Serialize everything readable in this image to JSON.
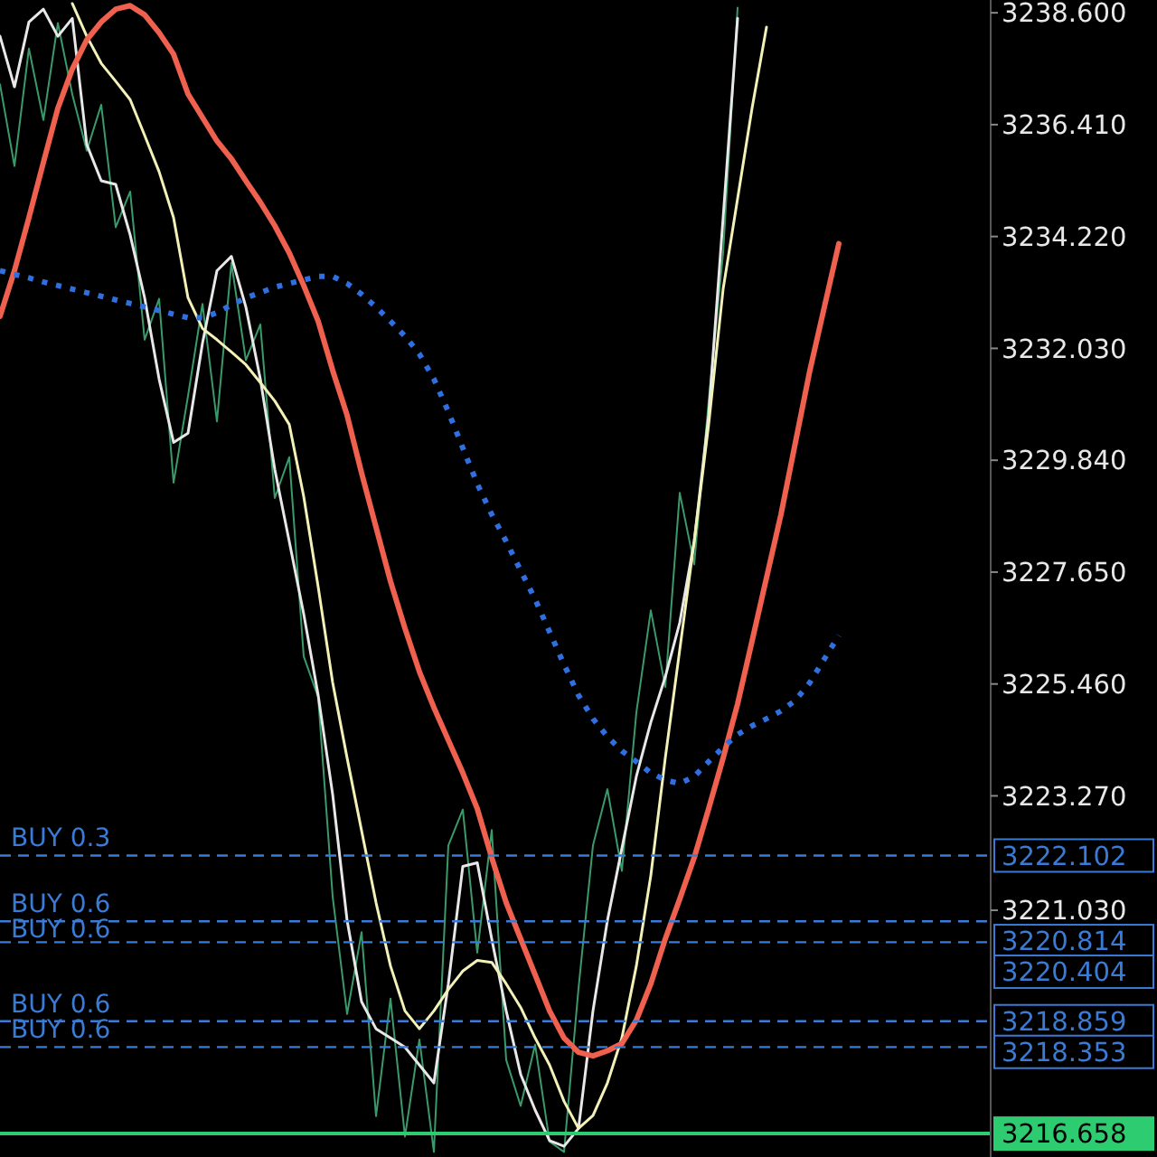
{
  "chart_data": {
    "type": "line",
    "annotations": [
      "3222.102",
      "3220.814",
      "3220.404",
      "3218.859",
      "3218.353",
      "3216.658"
    ],
    "categories": [
      null,
      null,
      null,
      null,
      null,
      null,
      null,
      null,
      null,
      null,
      null,
      null,
      null,
      null,
      null,
      null,
      null,
      null,
      null,
      null,
      null,
      null,
      null,
      null,
      null,
      null,
      null,
      null,
      null,
      null,
      null,
      null,
      null,
      null,
      null,
      null,
      null,
      null,
      null,
      null,
      null,
      null,
      null,
      null,
      null,
      null,
      null,
      null,
      null,
      null,
      null,
      null,
      null,
      null,
      null,
      null,
      null,
      null,
      null,
      null,
      null,
      null,
      null,
      null,
      null,
      null,
      null,
      null,
      null
    ],
    "ylim": [
      3216.2,
      3238.85
    ],
    "yticks": [
      {
        "value": 3238.6,
        "label": "3238.600"
      },
      {
        "value": 3236.41,
        "label": "3236.410"
      },
      {
        "value": 3234.22,
        "label": "3234.220"
      },
      {
        "value": 3232.03,
        "label": "3232.030"
      },
      {
        "value": 3229.84,
        "label": "3229.840"
      },
      {
        "value": 3227.65,
        "label": "3227.650"
      },
      {
        "value": 3225.46,
        "label": "3225.460"
      },
      {
        "value": 3223.27,
        "label": "3223.270"
      },
      {
        "value": 3221.03,
        "label": "3221.030"
      }
    ],
    "series": [
      {
        "color": "#3a9a6a",
        "values": [
          3237.2,
          3235.6,
          3237.9,
          3236.5,
          3238.4,
          3237.0,
          3235.9,
          3236.8,
          3234.4,
          3235.1,
          3232.2,
          3233.0,
          3229.4,
          3231.1,
          3232.9,
          3230.6,
          3233.7,
          3231.8,
          3232.5,
          3229.1,
          3229.9,
          3226.0,
          3225.2,
          3221.3,
          3219.0,
          3220.6,
          3217.0,
          3219.3,
          3216.6,
          3218.5,
          3216.3,
          3222.3,
          3223.0,
          3220.2,
          3222.6,
          3218.1,
          3217.2,
          3218.4,
          3216.5,
          3216.3,
          3219.5,
          3222.3,
          3223.4,
          3221.8,
          3224.9,
          3226.9,
          3225.4,
          3229.2,
          3227.8,
          3231.0,
          3233.9,
          3238.7,
          null,
          null,
          null,
          null,
          null,
          null,
          null,
          null,
          null,
          null,
          null,
          null,
          null,
          null,
          null,
          null,
          null
        ]
      },
      {
        "color": "#e8e8e8",
        "values": [
          3238.14,
          3237.15,
          3238.42,
          3238.67,
          3238.14,
          3238.49,
          3236.02,
          3235.31,
          3235.24,
          3234.25,
          3233.02,
          3231.43,
          3230.19,
          3230.37,
          3232.13,
          3233.55,
          3233.83,
          3232.84,
          3231.43,
          3229.66,
          3228.25,
          3226.83,
          3225.24,
          3223.3,
          3220.83,
          3219.24,
          3218.71,
          3218.53,
          3218.35,
          3218.0,
          3217.65,
          3219.59,
          3221.89,
          3221.96,
          3220.47,
          3219.06,
          3217.82,
          3217.12,
          3216.52,
          3216.41,
          3216.76,
          3219.06,
          3220.83,
          3222.24,
          3223.65,
          3224.71,
          3225.6,
          3226.66,
          3228.25,
          3230.72,
          3234.59,
          3238.49,
          null,
          null,
          null,
          null,
          null,
          null,
          null,
          null,
          null,
          null,
          null,
          null,
          null,
          null,
          null,
          null,
          null
        ]
      },
      {
        "color": "#f3f1b8",
        "values": [
          null,
          null,
          null,
          null,
          null,
          3238.78,
          3238.14,
          3237.61,
          3237.26,
          3236.9,
          3236.2,
          3235.49,
          3234.59,
          3233.02,
          3232.42,
          3232.2,
          3231.96,
          3231.71,
          3231.36,
          3231.0,
          3230.54,
          3229.13,
          3227.36,
          3225.49,
          3224.01,
          3222.59,
          3221.18,
          3219.94,
          3219.06,
          3218.71,
          3219.06,
          3219.48,
          3219.84,
          3220.05,
          3220.01,
          3219.59,
          3219.13,
          3218.53,
          3218.0,
          3217.29,
          3216.76,
          3217.01,
          3217.65,
          3218.53,
          3219.94,
          3221.71,
          3224.01,
          3226.13,
          3228.25,
          3230.54,
          3233.19,
          3234.96,
          3236.73,
          3238.32,
          null,
          null,
          null,
          null,
          null,
          null,
          null,
          null,
          null,
          null,
          null,
          null,
          null,
          null,
          null
        ]
      },
      {
        "color": "#f0604e",
        "values": [
          3232.66,
          3233.55,
          3234.59,
          3235.67,
          3236.73,
          3237.5,
          3238.07,
          3238.42,
          3238.67,
          3238.74,
          3238.56,
          3238.21,
          3237.79,
          3237.01,
          3236.55,
          3236.09,
          3235.74,
          3235.31,
          3234.89,
          3234.43,
          3233.9,
          3233.26,
          3232.56,
          3231.6,
          3230.72,
          3229.59,
          3228.53,
          3227.47,
          3226.55,
          3225.7,
          3225.0,
          3224.36,
          3223.72,
          3223.02,
          3222.06,
          3221.18,
          3220.47,
          3219.77,
          3219.06,
          3218.53,
          3218.25,
          3218.18,
          3218.28,
          3218.42,
          3218.88,
          3219.59,
          3220.47,
          3221.25,
          3222.06,
          3223.02,
          3224.01,
          3225.07,
          3226.3,
          3227.54,
          3228.78,
          3230.19,
          3231.6,
          3232.84,
          3234.08,
          null,
          null,
          null,
          null,
          null,
          null,
          null,
          null,
          null,
          null
        ]
      },
      {
        "color": "#2f6fe0",
        "line_style": "dotted",
        "values": [
          3233.55,
          3233.48,
          3233.41,
          3233.33,
          3233.26,
          3233.19,
          3233.12,
          3233.05,
          3232.98,
          3232.91,
          3232.84,
          3232.77,
          3232.7,
          3232.63,
          3232.63,
          3232.73,
          3232.88,
          3233.02,
          3233.12,
          3233.23,
          3233.3,
          3233.37,
          3233.44,
          3233.44,
          3233.3,
          3233.09,
          3232.84,
          3232.56,
          3232.27,
          3231.92,
          3231.43,
          3230.79,
          3230.08,
          3229.38,
          3228.78,
          3228.25,
          3227.68,
          3227.12,
          3226.48,
          3225.84,
          3225.24,
          3224.78,
          3224.43,
          3224.15,
          3223.94,
          3223.72,
          3223.58,
          3223.51,
          3223.65,
          3223.94,
          3224.22,
          3224.47,
          3224.64,
          3224.78,
          3224.93,
          3225.14,
          3225.49,
          3225.95,
          3226.41,
          null,
          null,
          null,
          null,
          null,
          null,
          null,
          null,
          null,
          null
        ]
      }
    ],
    "ref_lines": [
      {
        "axis": "y",
        "value": 3222.102,
        "label": "BUY 0.3",
        "color": "#3a7bd5",
        "line_style": "dashed"
      },
      {
        "axis": "y",
        "value": 3220.814,
        "label": "BUY 0.6",
        "color": "#3a7bd5",
        "line_style": "dashed"
      },
      {
        "axis": "y",
        "value": 3220.404,
        "label": "BUY 0.6",
        "color": "#3a7bd5",
        "line_style": "dashed"
      },
      {
        "axis": "y",
        "value": 3218.859,
        "label": "BUY 0.6",
        "color": "#3a7bd5",
        "line_style": "dashed"
      },
      {
        "axis": "y",
        "value": 3218.353,
        "label": "BUY 0.6",
        "color": "#3a7bd5",
        "line_style": "dashed"
      },
      {
        "axis": "y",
        "value": 3216.658,
        "label": null,
        "color": "#2ecc71",
        "line_style": "solid"
      }
    ]
  }
}
